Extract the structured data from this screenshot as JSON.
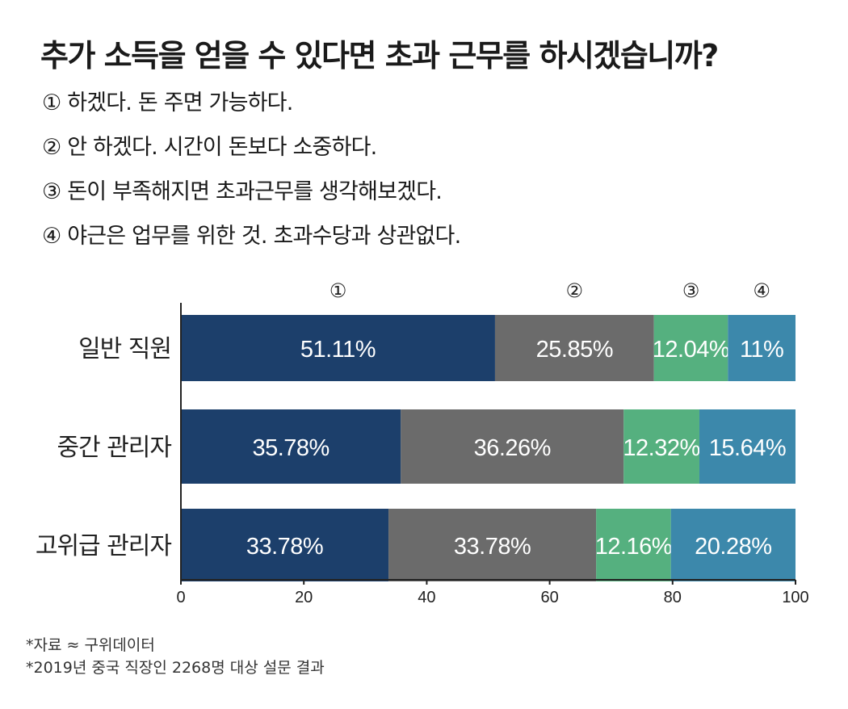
{
  "title": "추가 소득을 얻을 수 있다면 초과 근무를 하시겠습니까?",
  "options": [
    "① 하겠다. 돈 주면 가능하다.",
    "② 안 하겠다. 시간이 돈보다 소중하다.",
    "③ 돈이 부족해지면 초과근무를 생각해보겠다.",
    "④ 야근은 업무를 위한 것. 초과수당과 상관없다."
  ],
  "chart_data": {
    "type": "bar",
    "orientation": "horizontal",
    "stacked": true,
    "categories": [
      "일반 직원",
      "중간 관리자",
      "고위급 관리자"
    ],
    "series": [
      {
        "name": "①",
        "values": [
          51.11,
          35.78,
          33.78
        ],
        "labels": [
          "51.11%",
          "35.78%",
          "33.78%"
        ],
        "color": "#1c3f6b"
      },
      {
        "name": "②",
        "values": [
          25.85,
          36.26,
          33.78
        ],
        "labels": [
          "25.85%",
          "36.26%",
          "33.78%"
        ],
        "color": "#6b6b6b"
      },
      {
        "name": "③",
        "values": [
          12.04,
          12.32,
          12.16
        ],
        "labels": [
          "12.04%",
          "12.32%",
          "12.16%"
        ],
        "color": "#55b07f"
      },
      {
        "name": "④",
        "values": [
          11,
          15.64,
          20.28
        ],
        "labels": [
          "11%",
          "15.64%",
          "20.28%"
        ],
        "color": "#3c88ab"
      }
    ],
    "xlim": [
      0,
      100
    ],
    "xticks": [
      "0",
      "20",
      "40",
      "60",
      "80",
      "100"
    ],
    "legend": "top",
    "grid": false
  },
  "footer": {
    "source": "*자료 ≈ 구위데이터",
    "note": "*2019년 중국 직장인 2268명 대상 설문 결과"
  }
}
